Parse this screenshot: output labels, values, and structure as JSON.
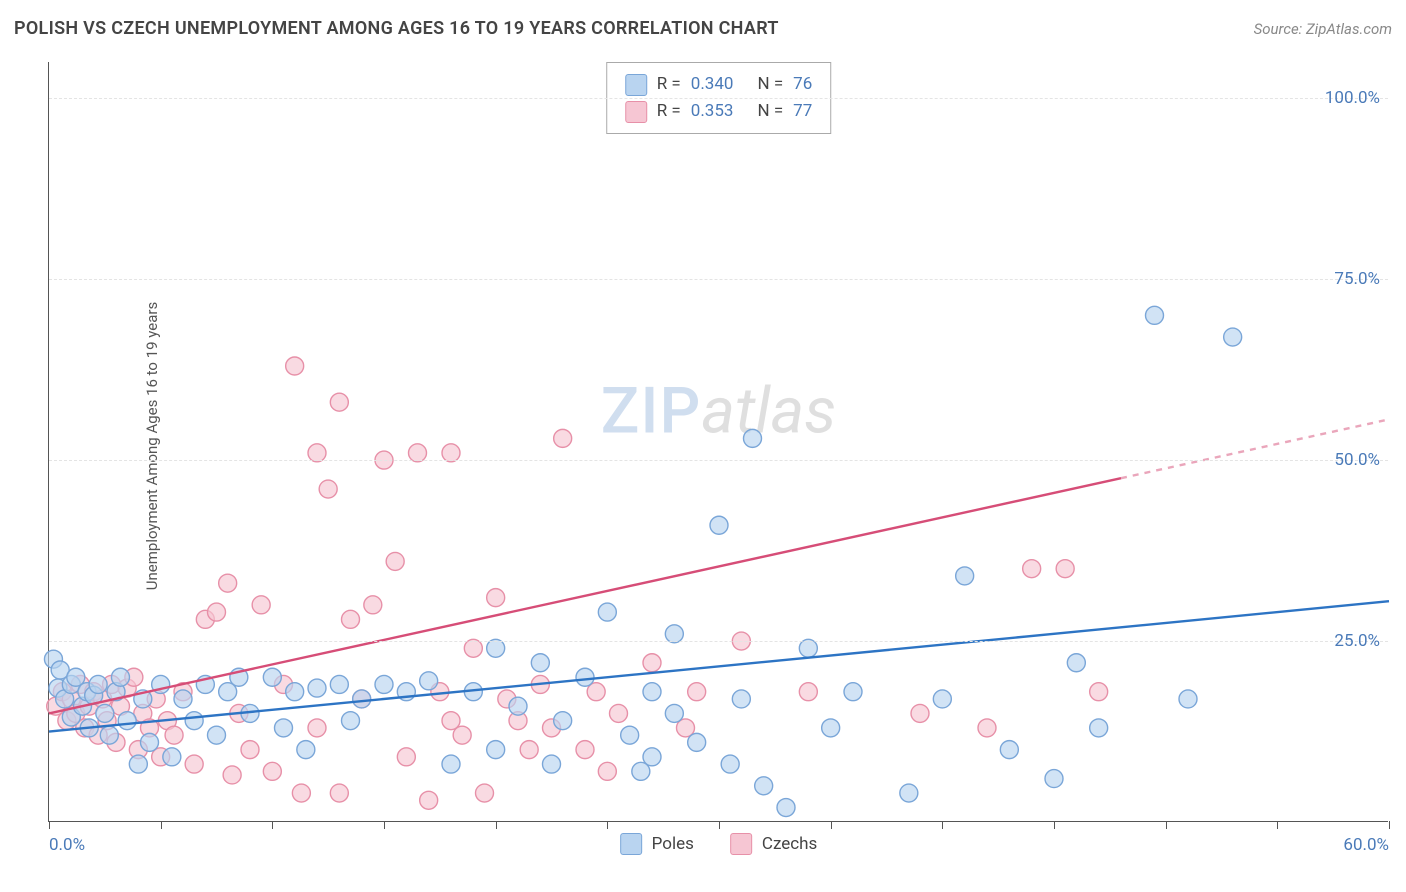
{
  "header": {
    "title": "POLISH VS CZECH UNEMPLOYMENT AMONG AGES 16 TO 19 YEARS CORRELATION CHART",
    "source_prefix": "Source: ",
    "source_name": "ZipAtlas.com"
  },
  "ylabel": "Unemployment Among Ages 16 to 19 years",
  "watermark": {
    "part1": "ZIP",
    "part2": "atlas"
  },
  "chart": {
    "type": "scatter",
    "xlim": [
      0,
      60
    ],
    "ylim": [
      0,
      105
    ],
    "xtick_positions": [
      0,
      5,
      10,
      15,
      20,
      25,
      30,
      35,
      40,
      45,
      50,
      55,
      60
    ],
    "xtick_labels": {
      "0": "0.0%",
      "60": "60.0%"
    },
    "ytick_positions": [
      25,
      50,
      75,
      100
    ],
    "ytick_labels": {
      "25": "25.0%",
      "50": "50.0%",
      "75": "75.0%",
      "100": "100.0%"
    },
    "grid_color": "#e4e4e4",
    "background_color": "#ffffff",
    "axis_color": "#555555",
    "tick_label_color": "#4a7ab8",
    "marker_radius": 9,
    "marker_stroke_width": 1.4,
    "trend_line_width": 2.4,
    "trend_dash_color_opacity": 0.5,
    "series": [
      {
        "name": "Poles",
        "label": "Poles",
        "fill": "#b9d4f0",
        "stroke": "#7aa6d8",
        "fill_opacity": 0.65,
        "trend_color": "#2d74c4",
        "R": "0.340",
        "N": "76",
        "trend_start": [
          0,
          12.5
        ],
        "trend_end": [
          60,
          30.5
        ],
        "extrapolate_from_x": 60,
        "points": [
          [
            0.2,
            22.5
          ],
          [
            0.4,
            18.5
          ],
          [
            0.5,
            21
          ],
          [
            0.7,
            17
          ],
          [
            1,
            19
          ],
          [
            1,
            14.5
          ],
          [
            1.2,
            20
          ],
          [
            1.5,
            16
          ],
          [
            1.7,
            18
          ],
          [
            1.8,
            13
          ],
          [
            2,
            17.5
          ],
          [
            2.2,
            19
          ],
          [
            2.5,
            15
          ],
          [
            2.7,
            12
          ],
          [
            3,
            18
          ],
          [
            3.2,
            20
          ],
          [
            3.5,
            14
          ],
          [
            4,
            8
          ],
          [
            4.2,
            17
          ],
          [
            4.5,
            11
          ],
          [
            5,
            19
          ],
          [
            5.5,
            9
          ],
          [
            6,
            17
          ],
          [
            6.5,
            14
          ],
          [
            7,
            19
          ],
          [
            7.5,
            12
          ],
          [
            8,
            18
          ],
          [
            8.5,
            20
          ],
          [
            9,
            15
          ],
          [
            10,
            20
          ],
          [
            10.5,
            13
          ],
          [
            11,
            18
          ],
          [
            11.5,
            10
          ],
          [
            12,
            18.5
          ],
          [
            13,
            19
          ],
          [
            13.5,
            14
          ],
          [
            14,
            17
          ],
          [
            15,
            19
          ],
          [
            16,
            18
          ],
          [
            17,
            19.5
          ],
          [
            18,
            8
          ],
          [
            19,
            18
          ],
          [
            20,
            24
          ],
          [
            20,
            10
          ],
          [
            21,
            16
          ],
          [
            22,
            22
          ],
          [
            22.5,
            8
          ],
          [
            23,
            14
          ],
          [
            24,
            20
          ],
          [
            25,
            29
          ],
          [
            26,
            12
          ],
          [
            26.5,
            7
          ],
          [
            27,
            18
          ],
          [
            27,
            9
          ],
          [
            28,
            15
          ],
          [
            28,
            26
          ],
          [
            29,
            11
          ],
          [
            30,
            41
          ],
          [
            30.5,
            8
          ],
          [
            31,
            17
          ],
          [
            31.5,
            53
          ],
          [
            32,
            5
          ],
          [
            33,
            2
          ],
          [
            34,
            24
          ],
          [
            35,
            13
          ],
          [
            36,
            18
          ],
          [
            38.5,
            4
          ],
          [
            40,
            17
          ],
          [
            41,
            34
          ],
          [
            43,
            10
          ],
          [
            46,
            22
          ],
          [
            47,
            13
          ],
          [
            49.5,
            70
          ],
          [
            51,
            17
          ],
          [
            53,
            67
          ],
          [
            45,
            6
          ]
        ]
      },
      {
        "name": "Czechs",
        "label": "Czechs",
        "fill": "#f6c6d3",
        "stroke": "#e790a8",
        "fill_opacity": 0.65,
        "trend_color": "#d64d77",
        "R": "0.353",
        "N": "77",
        "trend_start": [
          0,
          15
        ],
        "trend_end": [
          48,
          47.5
        ],
        "extrapolate_from_x": 48,
        "points": [
          [
            0.3,
            16
          ],
          [
            0.6,
            18
          ],
          [
            0.8,
            14
          ],
          [
            1,
            17
          ],
          [
            1.2,
            15
          ],
          [
            1.4,
            19
          ],
          [
            1.6,
            13
          ],
          [
            1.8,
            16
          ],
          [
            2,
            18
          ],
          [
            2.2,
            12
          ],
          [
            2.4,
            17
          ],
          [
            2.6,
            14
          ],
          [
            2.8,
            19
          ],
          [
            3,
            11
          ],
          [
            3.2,
            16
          ],
          [
            3.5,
            18.5
          ],
          [
            3.8,
            20
          ],
          [
            4,
            10
          ],
          [
            4.2,
            15
          ],
          [
            4.5,
            13
          ],
          [
            4.8,
            17
          ],
          [
            5,
            9
          ],
          [
            5.3,
            14
          ],
          [
            5.6,
            12
          ],
          [
            6,
            18
          ],
          [
            6.5,
            8
          ],
          [
            7,
            28
          ],
          [
            7.5,
            29
          ],
          [
            8.2,
            6.5
          ],
          [
            8.5,
            15
          ],
          [
            9,
            10
          ],
          [
            9.5,
            30
          ],
          [
            10,
            7
          ],
          [
            10.5,
            19
          ],
          [
            11,
            63
          ],
          [
            11.3,
            4
          ],
          [
            12,
            51
          ],
          [
            12,
            13
          ],
          [
            12.5,
            46
          ],
          [
            13,
            58
          ],
          [
            13.5,
            28
          ],
          [
            14,
            17
          ],
          [
            14.5,
            30
          ],
          [
            15,
            50
          ],
          [
            15.5,
            36
          ],
          [
            16,
            9
          ],
          [
            16.5,
            51
          ],
          [
            17,
            3
          ],
          [
            17.5,
            18
          ],
          [
            18,
            51
          ],
          [
            18,
            14
          ],
          [
            18.5,
            12
          ],
          [
            19,
            24
          ],
          [
            19.5,
            4
          ],
          [
            20,
            31
          ],
          [
            20.5,
            17
          ],
          [
            21,
            14
          ],
          [
            21.5,
            10
          ],
          [
            22,
            19
          ],
          [
            22.5,
            13
          ],
          [
            23,
            53
          ],
          [
            24,
            10
          ],
          [
            24.5,
            18
          ],
          [
            25,
            7
          ],
          [
            25.5,
            15
          ],
          [
            27,
            22
          ],
          [
            28.5,
            13
          ],
          [
            29,
            18
          ],
          [
            31,
            25
          ],
          [
            34,
            18
          ],
          [
            39,
            15
          ],
          [
            42,
            13
          ],
          [
            44,
            35
          ],
          [
            45.5,
            35
          ],
          [
            47,
            18
          ],
          [
            13,
            4
          ],
          [
            8,
            33
          ]
        ]
      }
    ]
  },
  "legend_top": {
    "r_prefix": "R = ",
    "n_prefix": "N = "
  }
}
